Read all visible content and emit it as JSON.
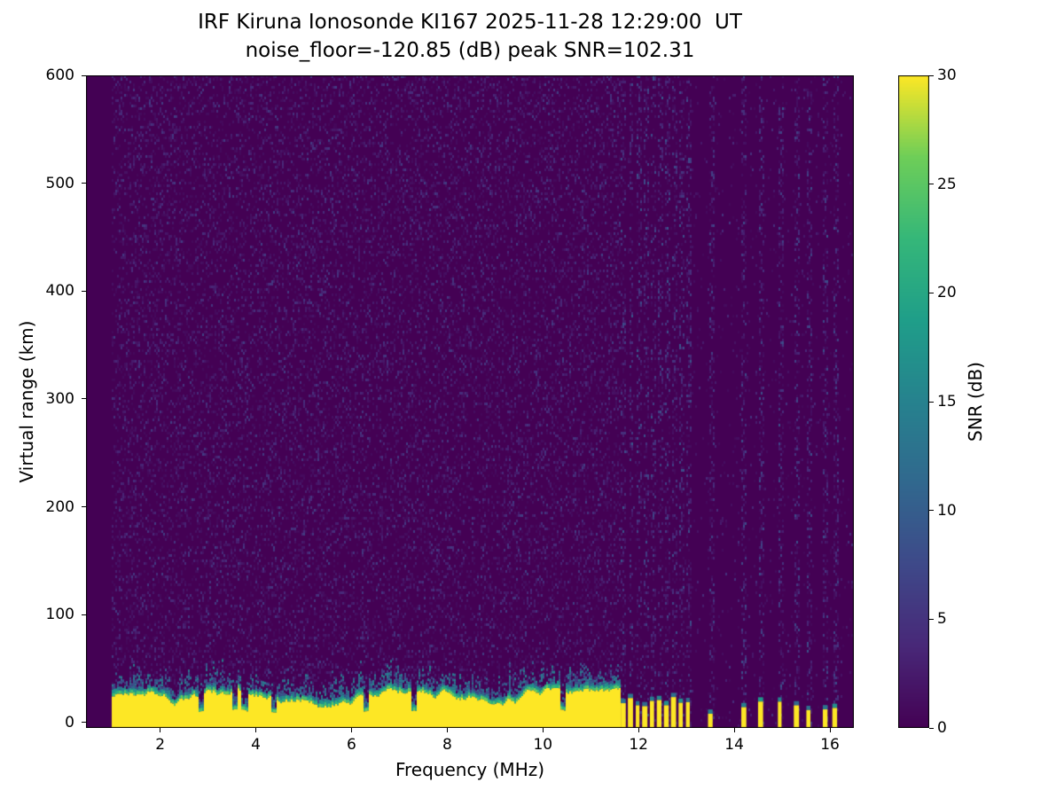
{
  "figure": {
    "background": "#ffffff"
  },
  "chart_data": {
    "type": "heatmap",
    "title": "IRF Kiruna Ionosonde KI167 2025-11-28 12:29:00  UT",
    "subtitle": "noise_floor=-120.85 (dB) peak SNR=102.31",
    "xlabel": "Frequency (MHz)",
    "ylabel": "Virtual range (km)",
    "colorbar_label": "SNR (dB)",
    "colormap": "viridis",
    "clim": [
      0,
      30
    ],
    "xlim": [
      0.45,
      16.5
    ],
    "ylim": [
      -5,
      600
    ],
    "xticks": [
      2,
      4,
      6,
      8,
      10,
      12,
      14,
      16
    ],
    "yticks": [
      0,
      100,
      200,
      300,
      400,
      500,
      600
    ],
    "colorbar_ticks": [
      0,
      5,
      10,
      15,
      20,
      25,
      30
    ],
    "grid": false,
    "colormap_stops": [
      [
        0,
        "#440154"
      ],
      [
        0.125,
        "#482878"
      ],
      [
        0.25,
        "#3e4989"
      ],
      [
        0.375,
        "#31688e"
      ],
      [
        0.5,
        "#26828e"
      ],
      [
        0.625,
        "#1f9e89"
      ],
      [
        0.75,
        "#35b779"
      ],
      [
        0.875,
        "#6ece58"
      ],
      [
        1,
        "#fde725"
      ]
    ],
    "features": {
      "data_start_mhz": 1.0,
      "continuous_clutter_end_mhz": 11.62,
      "clutter_yellow_top_km": 26,
      "clutter_teal_top_km": 50,
      "clutter_notches_mhz": [
        2.85,
        3.55,
        3.75,
        4.35,
        6.3,
        7.3,
        10.4
      ],
      "noise_snr_max_db": 6,
      "rfi_comb_mhz": {
        "start": 11.68,
        "end": 13.1,
        "spacing": 0.15
      },
      "rfi_stripes_mhz": [
        13.5,
        14.2,
        14.55,
        14.95,
        15.3,
        15.55,
        15.9,
        16.1
      ]
    }
  }
}
